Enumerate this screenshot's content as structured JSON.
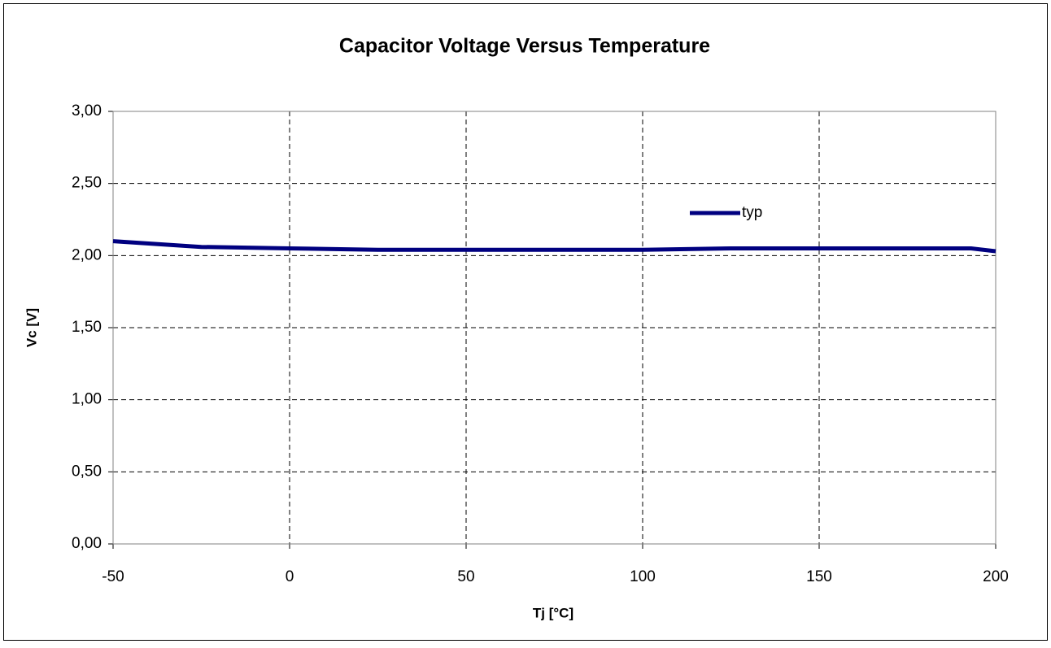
{
  "chart_data": {
    "type": "line",
    "title": "Capacitor Voltage Versus Temperature",
    "x_label": "Tj [°C]",
    "y_label": "Vc [V]",
    "x": [
      -50,
      -25,
      0,
      25,
      50,
      75,
      100,
      125,
      150,
      175,
      193,
      200
    ],
    "series": [
      {
        "name": "typ",
        "color": "#000080",
        "values": [
          2.1,
          2.06,
          2.05,
          2.04,
          2.04,
          2.04,
          2.04,
          2.05,
          2.05,
          2.05,
          2.05,
          2.03
        ]
      }
    ],
    "xlim": [
      -50,
      200
    ],
    "xticks": [
      -50,
      0,
      50,
      100,
      150,
      200
    ],
    "ylim": [
      0,
      3
    ],
    "yticks": [
      {
        "value": 0,
        "label": "0,00"
      },
      {
        "value": 0.5,
        "label": "0,50"
      },
      {
        "value": 1,
        "label": "1,00"
      },
      {
        "value": 1.5,
        "label": "1,50"
      },
      {
        "value": 2,
        "label": "2,00"
      },
      {
        "value": 2.5,
        "label": "2,50"
      },
      {
        "value": 3,
        "label": "3,00"
      }
    ],
    "grid": true,
    "legend": "upper right"
  }
}
